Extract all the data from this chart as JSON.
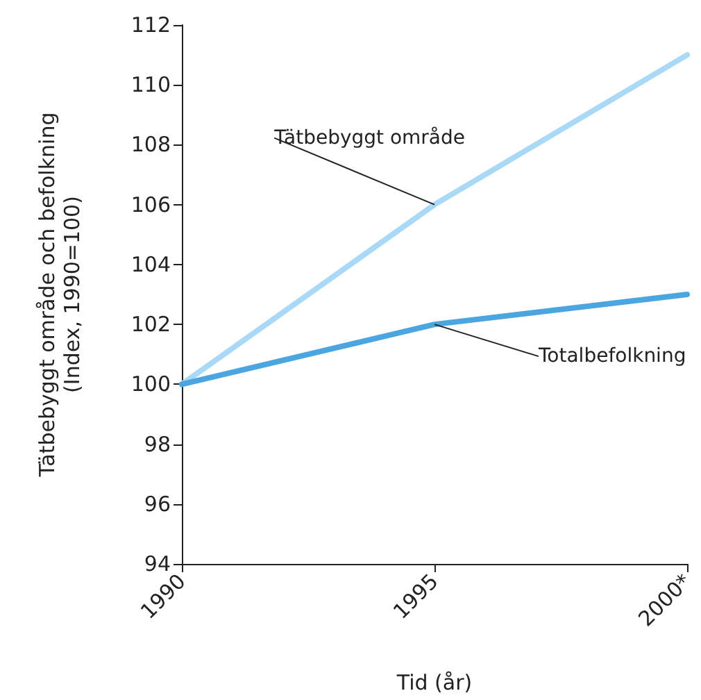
{
  "chart_data": {
    "type": "line",
    "xlabel": "Tid (år)",
    "ylabel": "Tätbebyggt område och befolkning\n(Index, 1990=100)",
    "categories": [
      "1990",
      "1995",
      "2000*"
    ],
    "series": [
      {
        "name": "Tätbebyggt område",
        "color": "#a9d9f6",
        "values": [
          100,
          106,
          111
        ]
      },
      {
        "name": "Totalbefolkning",
        "color": "#4ba5e0",
        "values": [
          100,
          102,
          103
        ]
      }
    ],
    "ylim": [
      94,
      112
    ],
    "yticks": [
      94,
      96,
      98,
      100,
      102,
      104,
      106,
      108,
      110,
      112
    ],
    "grid": false,
    "legend": false,
    "marker": "none",
    "line_style": "solid"
  }
}
